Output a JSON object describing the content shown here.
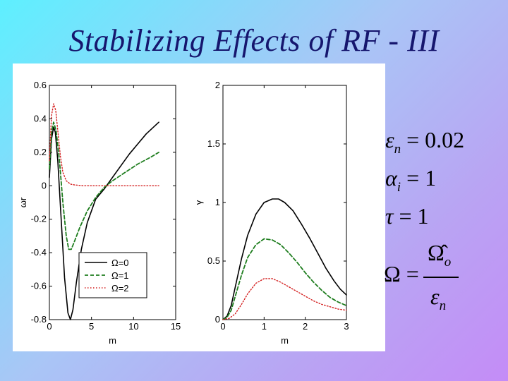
{
  "slide": {
    "title": "Stabilizing Effects of RF - III"
  },
  "equations": {
    "eps_lhs": "ε",
    "eps_sub": "n",
    "eps_rhs": "= 0.02",
    "alpha_lhs": "α",
    "alpha_sub": "i",
    "alpha_rhs": "= 1",
    "tau_lhs": "τ",
    "tau_rhs": "= 1",
    "omega_lhs": "Ω =",
    "omega_num": "Ω̂",
    "omega_num_sub": "o",
    "omega_den": "ε",
    "omega_den_sub": "n"
  },
  "colors": {
    "omega0": "#000000",
    "omega1": "#1e7d1e",
    "omega2": "#d42020"
  },
  "chart_data": [
    {
      "type": "line",
      "title": "",
      "xlabel": "m",
      "ylabel": "ωr",
      "xlim": [
        0,
        15
      ],
      "ylim": [
        -0.8,
        0.6
      ],
      "xticks": [
        "0",
        "5",
        "10",
        "15"
      ],
      "yticks": [
        "-0.8",
        "-0.6",
        "-0.4",
        "-0.2",
        "0",
        "0.2",
        "0.4",
        "0.6"
      ],
      "grid": false,
      "legend_placement": "bottom-right",
      "series": [
        {
          "name": "Ω=0",
          "style": "solid",
          "x": [
            0,
            0.25,
            0.5,
            0.7,
            1.0,
            1.4,
            1.8,
            2.2,
            2.5,
            2.8,
            3.2,
            3.8,
            4.5,
            5.5,
            6.5,
            7.5,
            8.5,
            9.5,
            10.5,
            11.5,
            13
          ],
          "y": [
            0.05,
            0.28,
            0.35,
            0.32,
            0.15,
            -0.2,
            -0.55,
            -0.76,
            -0.8,
            -0.74,
            -0.58,
            -0.38,
            -0.22,
            -0.08,
            -0.02,
            0.05,
            0.12,
            0.19,
            0.25,
            0.31,
            0.38
          ]
        },
        {
          "name": "Ω=1",
          "style": "dashed",
          "x": [
            0,
            0.25,
            0.5,
            0.8,
            1.2,
            1.6,
            2.0,
            2.3,
            2.6,
            3.0,
            3.6,
            4.5,
            5.5,
            6.5,
            7.5,
            9,
            10.5,
            12,
            13
          ],
          "y": [
            0.1,
            0.32,
            0.38,
            0.33,
            0.15,
            -0.1,
            -0.3,
            -0.38,
            -0.38,
            -0.33,
            -0.25,
            -0.15,
            -0.07,
            -0.01,
            0.03,
            0.08,
            0.13,
            0.17,
            0.2
          ]
        },
        {
          "name": "Ω=2",
          "style": "dotted",
          "x": [
            0,
            0.25,
            0.5,
            0.75,
            1.0,
            1.3,
            1.6,
            2.0,
            2.5,
            3.0,
            4,
            6,
            8,
            10,
            13
          ],
          "y": [
            0.15,
            0.42,
            0.49,
            0.45,
            0.33,
            0.18,
            0.08,
            0.03,
            0.01,
            0.005,
            0,
            0,
            0,
            0,
            0
          ]
        }
      ]
    },
    {
      "type": "line",
      "title": "",
      "xlabel": "m",
      "ylabel": "γ",
      "xlim": [
        0,
        3
      ],
      "ylim": [
        0,
        2
      ],
      "xticks": [
        "0",
        "1",
        "2",
        "3"
      ],
      "yticks": [
        "0",
        "0.5",
        "1",
        "1.5",
        "2"
      ],
      "grid": false,
      "series": [
        {
          "name": "Ω=0",
          "style": "solid",
          "x": [
            0,
            0.1,
            0.2,
            0.3,
            0.45,
            0.6,
            0.8,
            1.0,
            1.2,
            1.35,
            1.5,
            1.7,
            1.9,
            2.1,
            2.3,
            2.5,
            2.7,
            2.85,
            3.0
          ],
          "y": [
            0,
            0.03,
            0.12,
            0.28,
            0.52,
            0.72,
            0.9,
            1.0,
            1.03,
            1.03,
            1.0,
            0.93,
            0.82,
            0.7,
            0.57,
            0.44,
            0.33,
            0.26,
            0.21
          ]
        },
        {
          "name": "Ω=1",
          "style": "dashed",
          "x": [
            0,
            0.1,
            0.2,
            0.3,
            0.45,
            0.6,
            0.8,
            1.0,
            1.2,
            1.4,
            1.6,
            1.8,
            2.0,
            2.2,
            2.4,
            2.6,
            2.8,
            3.0
          ],
          "y": [
            0,
            0.02,
            0.08,
            0.2,
            0.38,
            0.53,
            0.64,
            0.69,
            0.68,
            0.64,
            0.57,
            0.49,
            0.4,
            0.32,
            0.25,
            0.19,
            0.15,
            0.12
          ]
        },
        {
          "name": "Ω=2",
          "style": "dotted",
          "x": [
            0,
            0.15,
            0.3,
            0.45,
            0.6,
            0.8,
            1.0,
            1.2,
            1.4,
            1.6,
            1.8,
            2.0,
            2.2,
            2.4,
            2.6,
            2.8,
            3.0
          ],
          "y": [
            0,
            0.01,
            0.05,
            0.13,
            0.22,
            0.31,
            0.35,
            0.35,
            0.32,
            0.28,
            0.24,
            0.2,
            0.16,
            0.13,
            0.11,
            0.09,
            0.08
          ]
        }
      ]
    }
  ]
}
